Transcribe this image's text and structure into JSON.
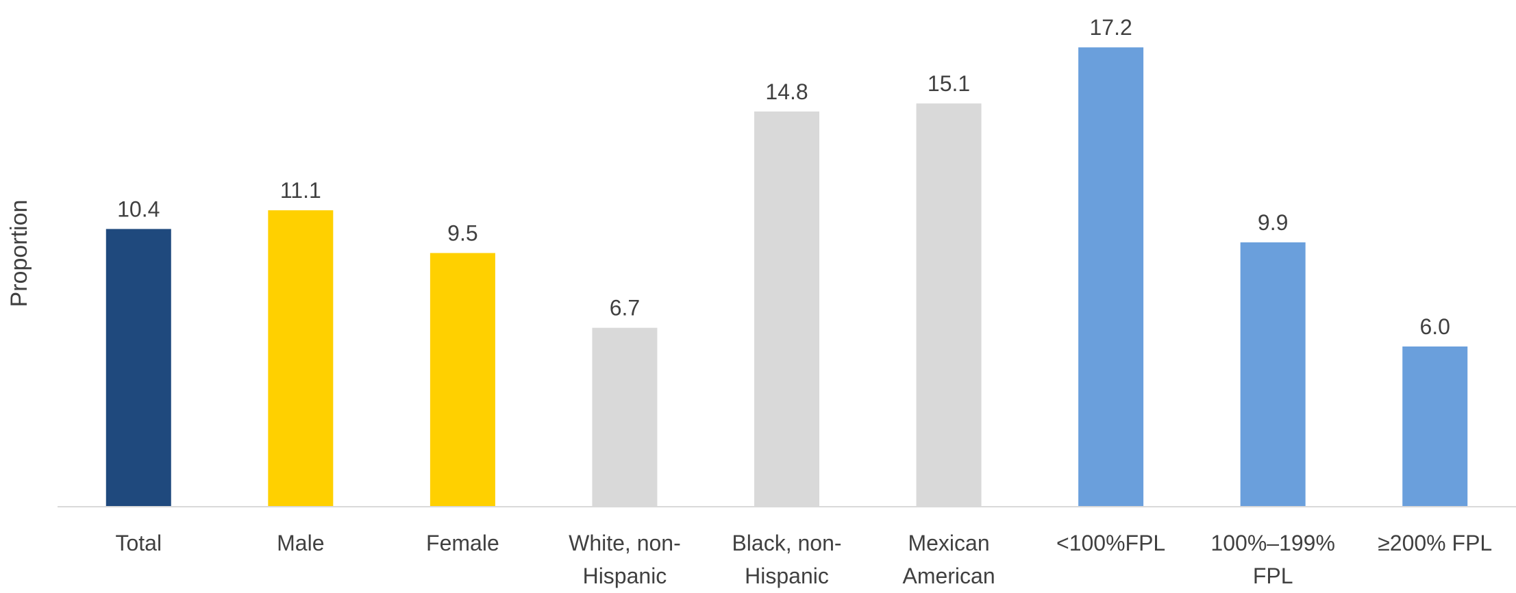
{
  "chart_data": {
    "type": "bar",
    "ylabel": "Proportion",
    "categories": [
      "Total",
      "Male",
      "Female",
      "White, non-Hispanic",
      "Black, non-Hispanic",
      "Mexican American",
      "<100%FPL",
      "100%–199% FPL",
      "≥200% FPL"
    ],
    "category_label_lines": [
      [
        "Total"
      ],
      [
        "Male"
      ],
      [
        "Female"
      ],
      [
        "White, non-",
        "Hispanic"
      ],
      [
        "Black, non-",
        "Hispanic"
      ],
      [
        "Mexican",
        "American"
      ],
      [
        "<100%FPL"
      ],
      [
        "100%–199%",
        "FPL"
      ],
      [
        "≥200% FPL"
      ]
    ],
    "values": [
      10.4,
      11.1,
      9.5,
      6.7,
      14.8,
      15.1,
      17.2,
      9.9,
      6.0
    ],
    "value_labels": [
      "10.4",
      "11.1",
      "9.5",
      "6.7",
      "14.8",
      "15.1",
      "17.2",
      "9.9",
      "6.0"
    ],
    "bar_colors": [
      "#1F497D",
      "#FFD000",
      "#FFD000",
      "#D9D9D9",
      "#D9D9D9",
      "#D9D9D9",
      "#6A9FDC",
      "#6A9FDC",
      "#6A9FDC"
    ],
    "ylim": [
      0,
      18
    ],
    "grid": false,
    "legend": "none"
  }
}
